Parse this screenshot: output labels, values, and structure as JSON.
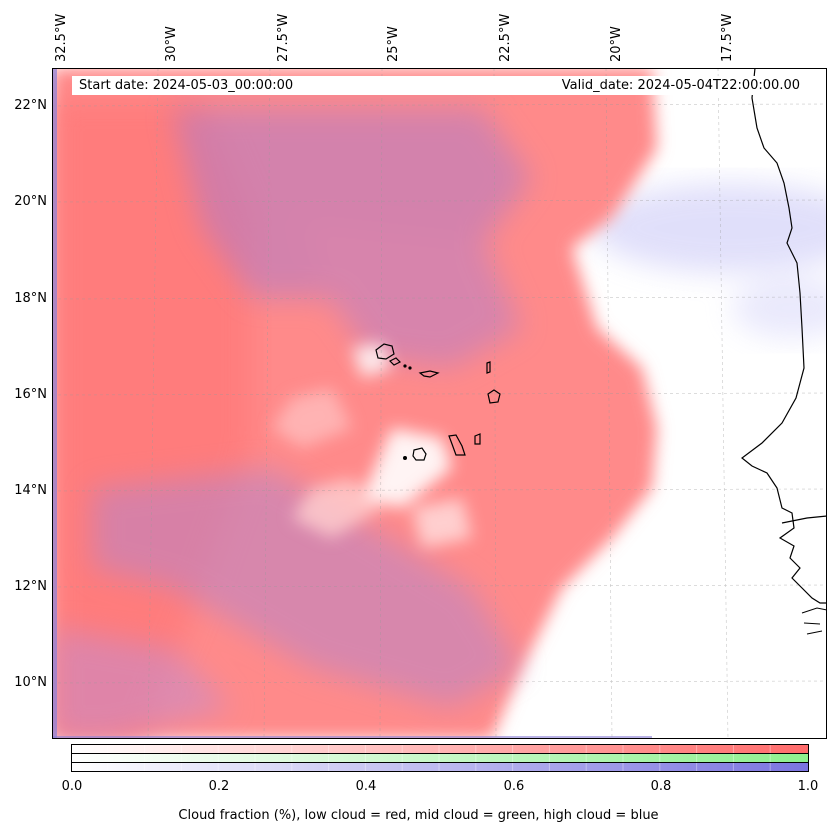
{
  "map": {
    "longitude_labels": [
      "32.5°W",
      "30°W",
      "27.5°W",
      "25°W",
      "22.5°W",
      "20°W",
      "17.5°W"
    ],
    "latitude_labels": [
      "22°N",
      "20°N",
      "18°N",
      "16°N",
      "14°N",
      "12°N",
      "10°N"
    ],
    "start_date_text": "Start date: 2024-05-03_00:00:00",
    "valid_date_text": "Valid_date: 2024-05-04T22:00:00.00"
  },
  "colorbar": {
    "tick_labels": [
      "0.0",
      "0.2",
      "0.4",
      "0.6",
      "0.8",
      "1.0"
    ],
    "title": "Cloud fraction (%), low cloud = red, mid cloud = green, high cloud = blue",
    "colors": {
      "low": "#ff6b6b",
      "mid": "#8ef08e",
      "high": "#7b74e0"
    }
  }
}
